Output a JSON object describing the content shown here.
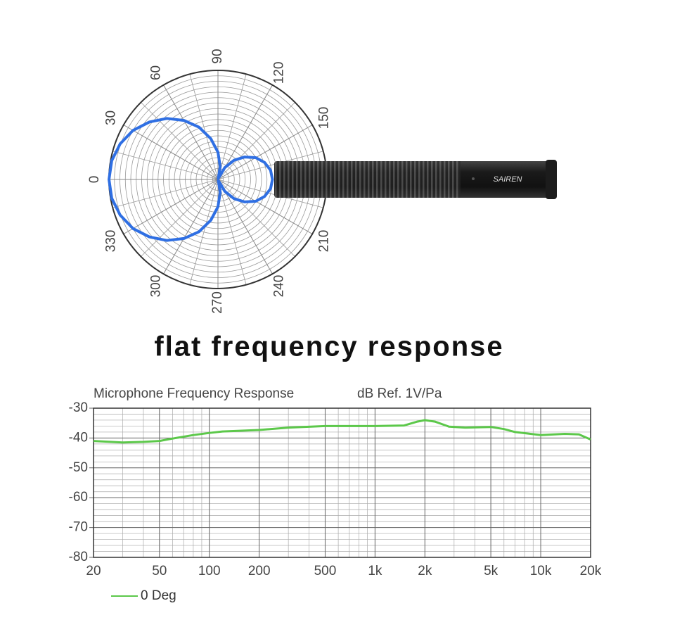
{
  "heading": "flat frequency response",
  "product_label": "SAIREN",
  "chart_data": [
    {
      "type": "polar",
      "angle_ticks": [
        0,
        30,
        60,
        90,
        120,
        150,
        210,
        240,
        270,
        300,
        330
      ],
      "angles": [
        0,
        10,
        20,
        30,
        40,
        50,
        60,
        70,
        80,
        90,
        100,
        110,
        120,
        130,
        140,
        150,
        160,
        170,
        180,
        190,
        200,
        210,
        220,
        230,
        240,
        250,
        260,
        270,
        280,
        290,
        300,
        310,
        320,
        330,
        340,
        350
      ],
      "values": [
        1.0,
        0.99,
        0.955,
        0.9,
        0.82,
        0.73,
        0.625,
        0.51,
        0.38,
        0.25,
        0.12,
        0.01,
        0.125,
        0.23,
        0.32,
        0.4,
        0.455,
        0.49,
        0.5,
        0.49,
        0.455,
        0.4,
        0.32,
        0.23,
        0.125,
        0.01,
        0.12,
        0.25,
        0.38,
        0.51,
        0.625,
        0.73,
        0.82,
        0.9,
        0.955,
        0.99
      ],
      "rlim": [
        0,
        1
      ],
      "color": "#2f6fe3"
    },
    {
      "type": "line",
      "title": "Microphone Frequency Response",
      "y_label": "dB Ref. 1V/Pa",
      "xscale": "log",
      "x": [
        20,
        30,
        40,
        50,
        60,
        80,
        100,
        120,
        200,
        300,
        500,
        800,
        1000,
        1500,
        1800,
        2000,
        2300,
        2800,
        3500,
        5000,
        6000,
        7000,
        10000,
        14000,
        17000,
        20000
      ],
      "series": [
        {
          "name": "0 Deg",
          "color": "#5cc84a",
          "values": [
            -41,
            -41.5,
            -41.3,
            -41,
            -40.2,
            -39,
            -38.3,
            -37.8,
            -37.3,
            -36.5,
            -36,
            -36,
            -36,
            -35.8,
            -34.5,
            -34,
            -34.5,
            -36.2,
            -36.5,
            -36.3,
            -37,
            -38,
            -39,
            -38.6,
            -38.8,
            -40.5
          ]
        }
      ],
      "xlim": [
        20,
        20000
      ],
      "xticks": [
        20,
        50,
        100,
        200,
        500,
        {
          "value": 1000,
          "label": "1k"
        },
        {
          "value": 2000,
          "label": "2k"
        },
        {
          "value": 5000,
          "label": "5k"
        },
        {
          "value": 10000,
          "label": "10k"
        },
        {
          "value": 20000,
          "label": "20k"
        }
      ],
      "ylim": [
        -80,
        -30
      ],
      "yticks": [
        -30,
        -40,
        -50,
        -60,
        -70,
        -80
      ],
      "grid": true
    }
  ]
}
